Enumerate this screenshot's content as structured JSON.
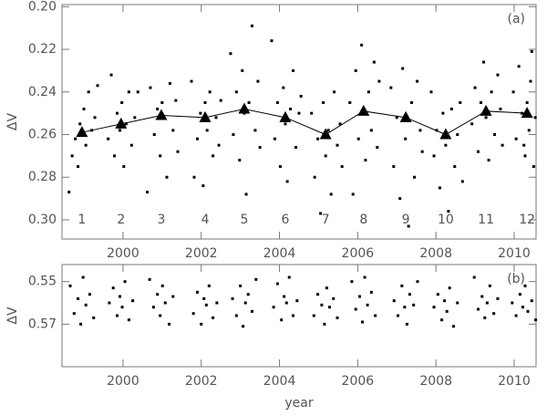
{
  "chart_data": [
    {
      "type": "scatter",
      "panel_label": "(a)",
      "ylabel": "ΔV",
      "xlim": [
        1998.44,
        2010.56
      ],
      "ylim": [
        0.309,
        0.199
      ],
      "xticks": [
        2000,
        2002,
        2004,
        2006,
        2008,
        2010
      ],
      "yticks": [
        {
          "value": 0.2,
          "label": "0.20"
        },
        0.22,
        0.24,
        0.26,
        0.28,
        {
          "value": 0.3,
          "label": "0.30"
        }
      ],
      "cluster_labels": [
        "1",
        "2",
        "3",
        "4",
        "5",
        "6",
        "7",
        "8",
        "9",
        "10",
        "11",
        "12"
      ],
      "series": [
        {
          "color": "#000000",
          "marker": "square",
          "x": [
            1998.62,
            1998.7,
            1998.78,
            1998.85,
            1998.9,
            1998.95,
            1999.0,
            1999.05,
            1999.12,
            1999.2,
            1999.28,
            1999.35,
            1999.62,
            1999.7,
            1999.78,
            1999.85,
            1999.92,
            1999.97,
            2000.02,
            2000.08,
            2000.15,
            2000.22,
            2000.3,
            2000.38,
            2000.62,
            2000.7,
            2000.8,
            2000.88,
            2000.95,
            2001.0,
            2001.05,
            2001.12,
            2001.2,
            2001.28,
            2001.35,
            2001.4,
            2001.75,
            2001.82,
            2001.9,
            2001.98,
            2002.05,
            2002.1,
            2002.15,
            2002.22,
            2002.3,
            2002.38,
            2002.45,
            2002.5,
            2002.75,
            2002.82,
            2002.9,
            2002.98,
            2003.05,
            2003.1,
            2003.15,
            2003.22,
            2003.3,
            2003.38,
            2003.45,
            2003.5,
            2003.8,
            2003.88,
            2003.95,
            2004.02,
            2004.1,
            2004.15,
            2004.2,
            2004.28,
            2004.35,
            2004.42,
            2004.5,
            2004.55,
            2004.82,
            2004.9,
            2004.98,
            2005.05,
            2005.12,
            2005.18,
            2005.25,
            2005.32,
            2005.4,
            2005.48,
            2005.55,
            2005.6,
            2005.8,
            2005.88,
            2005.95,
            2006.02,
            2006.1,
            2006.15,
            2006.2,
            2006.28,
            2006.35,
            2006.42,
            2006.5,
            2006.55,
            2006.85,
            2006.92,
            2007.0,
            2007.08,
            2007.15,
            2007.22,
            2007.3,
            2007.38,
            2007.45,
            2007.52,
            2007.6,
            2007.65,
            2007.88,
            2007.95,
            2008.02,
            2008.1,
            2008.18,
            2008.25,
            2008.32,
            2008.4,
            2008.48,
            2008.55,
            2008.62,
            2008.68,
            2008.92,
            2009.0,
            2009.08,
            2009.15,
            2009.22,
            2009.28,
            2009.35,
            2009.42,
            2009.5,
            2009.58,
            2009.65,
            2009.7,
            2009.98,
            2010.05,
            2010.12,
            2010.2,
            2010.28,
            2010.33,
            2010.38,
            2010.45,
            2010.5,
            2010.54,
            2010.42,
            2010.25
          ],
          "values": [
            0.287,
            0.27,
            0.262,
            0.275,
            0.255,
            0.26,
            0.248,
            0.265,
            0.24,
            0.258,
            0.252,
            0.237,
            0.262,
            0.232,
            0.27,
            0.25,
            0.258,
            0.245,
            0.275,
            0.255,
            0.24,
            0.265,
            0.252,
            0.24,
            0.287,
            0.238,
            0.26,
            0.248,
            0.27,
            0.245,
            0.252,
            0.28,
            0.236,
            0.258,
            0.244,
            0.268,
            0.235,
            0.28,
            0.262,
            0.25,
            0.284,
            0.245,
            0.258,
            0.24,
            0.27,
            0.252,
            0.265,
            0.244,
            0.222,
            0.26,
            0.24,
            0.272,
            0.23,
            0.25,
            0.288,
            0.245,
            0.209,
            0.258,
            0.235,
            0.266,
            0.216,
            0.262,
            0.245,
            0.275,
            0.238,
            0.255,
            0.282,
            0.248,
            0.23,
            0.266,
            0.25,
            0.242,
            0.25,
            0.28,
            0.262,
            0.297,
            0.245,
            0.27,
            0.258,
            0.288,
            0.24,
            0.265,
            0.255,
            0.275,
            0.245,
            0.288,
            0.23,
            0.262,
            0.218,
            0.25,
            0.272,
            0.24,
            0.258,
            0.226,
            0.266,
            0.235,
            0.238,
            0.275,
            0.252,
            0.29,
            0.229,
            0.262,
            0.303,
            0.245,
            0.28,
            0.235,
            0.258,
            0.268,
            0.24,
            0.27,
            0.258,
            0.285,
            0.25,
            0.265,
            0.296,
            0.248,
            0.275,
            0.26,
            0.245,
            0.282,
            0.255,
            0.238,
            0.268,
            0.245,
            0.226,
            0.252,
            0.272,
            0.24,
            0.26,
            0.232,
            0.248,
            0.265,
            0.24,
            0.262,
            0.228,
            0.25,
            0.27,
            0.245,
            0.258,
            0.221,
            0.275,
            0.252,
            0.235,
            0.265
          ]
        },
        {
          "color": "#000000",
          "marker": "triangle",
          "line": true,
          "x": [
            1998.95,
            1999.95,
            2000.98,
            2002.1,
            2003.1,
            2004.15,
            2005.18,
            2006.15,
            2007.23,
            2008.25,
            2009.28,
            2010.33
          ],
          "values": [
            0.259,
            0.255,
            0.251,
            0.252,
            0.248,
            0.252,
            0.26,
            0.249,
            0.252,
            0.26,
            0.249,
            0.25
          ]
        }
      ]
    },
    {
      "type": "scatter",
      "panel_label": "(b)",
      "ylabel": "ΔV",
      "xlabel": "year",
      "xlim": [
        1998.44,
        2010.56
      ],
      "ylim": [
        0.59,
        0.542
      ],
      "xticks": [
        2000,
        2002,
        2004,
        2006,
        2008,
        2010
      ],
      "yticks": [
        0.55,
        0.57
      ],
      "series": [
        {
          "color": "#000000",
          "marker": "square",
          "x": [
            1998.65,
            1998.75,
            1998.85,
            1998.92,
            1998.98,
            1999.05,
            1999.15,
            1999.25,
            1999.65,
            1999.75,
            1999.85,
            1999.92,
            1999.98,
            2000.05,
            2000.15,
            2000.25,
            2000.68,
            2000.78,
            2000.88,
            2000.95,
            2001.01,
            2001.08,
            2001.18,
            2001.28,
            2001.8,
            2001.9,
            2002.0,
            2002.07,
            2002.13,
            2002.2,
            2002.3,
            2002.4,
            2002.8,
            2002.9,
            2003.0,
            2003.07,
            2003.13,
            2003.2,
            2003.3,
            2003.4,
            2003.85,
            2003.95,
            2004.05,
            2004.12,
            2004.18,
            2004.25,
            2004.35,
            2004.45,
            2004.88,
            2004.98,
            2005.08,
            2005.15,
            2005.21,
            2005.28,
            2005.38,
            2005.48,
            2005.85,
            2005.95,
            2006.05,
            2006.12,
            2006.18,
            2006.25,
            2006.35,
            2006.45,
            2006.93,
            2007.03,
            2007.13,
            2007.2,
            2007.26,
            2007.33,
            2007.43,
            2007.53,
            2007.95,
            2008.05,
            2008.15,
            2008.22,
            2008.28,
            2008.35,
            2008.45,
            2008.55,
            2008.98,
            2009.08,
            2009.18,
            2009.25,
            2009.31,
            2009.38,
            2009.48,
            2009.58,
            2009.95,
            2010.05,
            2010.15,
            2010.22,
            2010.28,
            2010.35,
            2010.45,
            2010.55
          ],
          "values": [
            0.552,
            0.565,
            0.558,
            0.57,
            0.548,
            0.561,
            0.556,
            0.567,
            0.56,
            0.553,
            0.566,
            0.557,
            0.562,
            0.55,
            0.568,
            0.559,
            0.549,
            0.562,
            0.556,
            0.566,
            0.552,
            0.56,
            0.57,
            0.557,
            0.565,
            0.555,
            0.57,
            0.558,
            0.561,
            0.552,
            0.567,
            0.56,
            0.558,
            0.566,
            0.552,
            0.571,
            0.56,
            0.556,
            0.564,
            0.549,
            0.562,
            0.551,
            0.568,
            0.557,
            0.56,
            0.548,
            0.566,
            0.559,
            0.566,
            0.556,
            0.561,
            0.57,
            0.553,
            0.562,
            0.558,
            0.567,
            0.55,
            0.563,
            0.557,
            0.569,
            0.548,
            0.561,
            0.555,
            0.566,
            0.559,
            0.566,
            0.552,
            0.562,
            0.57,
            0.556,
            0.561,
            0.55,
            0.562,
            0.556,
            0.568,
            0.559,
            0.564,
            0.553,
            0.571,
            0.56,
            0.548,
            0.563,
            0.557,
            0.567,
            0.56,
            0.552,
            0.565,
            0.558,
            0.56,
            0.566,
            0.556,
            0.562,
            0.552,
            0.564,
            0.559,
            0.568
          ]
        }
      ]
    }
  ]
}
